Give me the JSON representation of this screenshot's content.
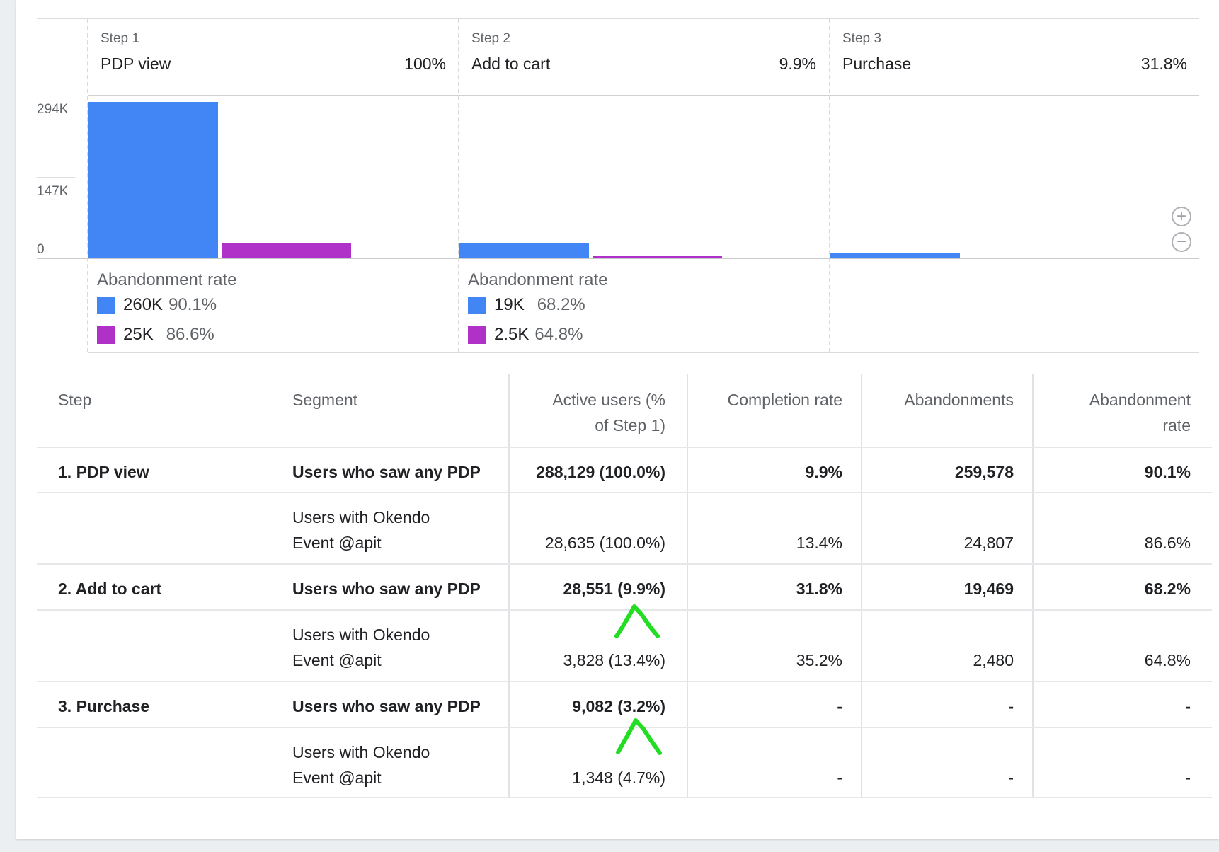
{
  "funnel": {
    "steps": [
      {
        "label": "Step 1",
        "name": "PDP view",
        "pct": "100%"
      },
      {
        "label": "Step 2",
        "name": "Add to cart",
        "pct": "9.9%"
      },
      {
        "label": "Step 3",
        "name": "Purchase",
        "pct": "31.8%"
      }
    ],
    "y_ticks": [
      "294K",
      "147K",
      "0"
    ],
    "abandonment_title": "Abandonment rate",
    "abandonment": [
      {
        "rows": [
          {
            "count": "260K",
            "rate": "90.1%"
          },
          {
            "count": "25K",
            "rate": "86.6%"
          }
        ]
      },
      {
        "rows": [
          {
            "count": "19K",
            "rate": "68.2%"
          },
          {
            "count": "2.5K",
            "rate": "64.8%"
          }
        ]
      }
    ],
    "colors": {
      "segment_1": "#4285f4",
      "segment_2": "#b031c8"
    },
    "zoom_in_label": "+",
    "zoom_out_label": "−"
  },
  "chart_data": {
    "type": "bar",
    "categories": [
      "PDP view",
      "Add to cart",
      "Purchase"
    ],
    "ylim": [
      0,
      294000
    ],
    "series": [
      {
        "name": "Users who saw any PDP",
        "values": [
          288129,
          28551,
          9082
        ]
      },
      {
        "name": "Users with Okendo Event @apit",
        "values": [
          28635,
          3828,
          1348
        ]
      }
    ]
  },
  "table": {
    "headers": {
      "step": "Step",
      "segment": "Segment",
      "active_users_1": "Active users (%",
      "active_users_2": "of Step 1)",
      "completion": "Completion rate",
      "abandonments": "Abandonments",
      "abandon_rate_1": "Abandonment",
      "abandon_rate_2": "rate"
    },
    "rows": [
      {
        "step": "1. PDP view",
        "segment": "Users who saw any PDP",
        "active": "288,129 (100.0%)",
        "completion": "9.9%",
        "abandonments": "259,578",
        "rate": "90.1%"
      },
      {
        "step": "",
        "segment_1": "Users with Okendo",
        "segment_2": "Event @apit",
        "active": "28,635 (100.0%)",
        "completion": "13.4%",
        "abandonments": "24,807",
        "rate": "86.6%"
      },
      {
        "step": "2. Add to cart",
        "segment": "Users who saw any PDP",
        "active": "28,551 (9.9%)",
        "completion": "31.8%",
        "abandonments": "19,469",
        "rate": "68.2%"
      },
      {
        "step": "",
        "segment_1": "Users with Okendo",
        "segment_2": "Event @apit",
        "active": "3,828 (13.4%)",
        "completion": "35.2%",
        "abandonments": "2,480",
        "rate": "64.8%"
      },
      {
        "step": "3. Purchase",
        "segment": "Users who saw any PDP",
        "active": "9,082 (3.2%)",
        "completion": "-",
        "abandonments": "-",
        "rate": "-"
      },
      {
        "step": "",
        "segment_1": "Users with Okendo",
        "segment_2": "Event @apit",
        "active": "1,348 (4.7%)",
        "completion": "-",
        "abandonments": "-",
        "rate": "-"
      }
    ]
  },
  "annotation_color": "#22dd22"
}
